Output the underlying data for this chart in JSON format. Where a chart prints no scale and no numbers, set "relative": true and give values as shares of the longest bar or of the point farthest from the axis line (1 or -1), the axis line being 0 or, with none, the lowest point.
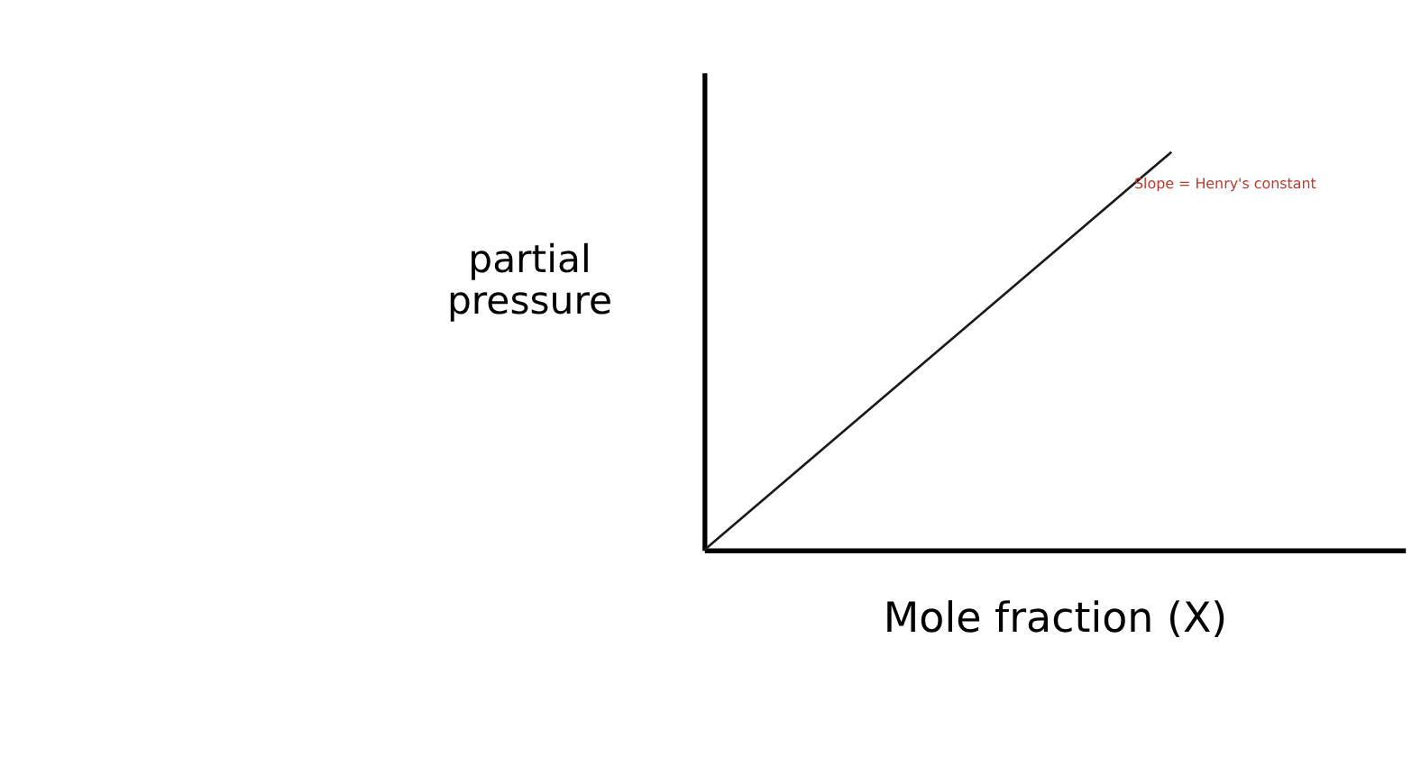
{
  "chart_data": {
    "type": "line",
    "relative": true,
    "categories": [
      null,
      null,
      null
    ],
    "values": [
      0,
      0.5,
      1
    ],
    "color": "#1a1a1a",
    "xlabel": "Mole fraction (X)",
    "ylabel": "partial pressure",
    "annotations": [
      "Slope = Henry's constant"
    ],
    "grid": false,
    "marker": "none",
    "line_style": "solid"
  }
}
